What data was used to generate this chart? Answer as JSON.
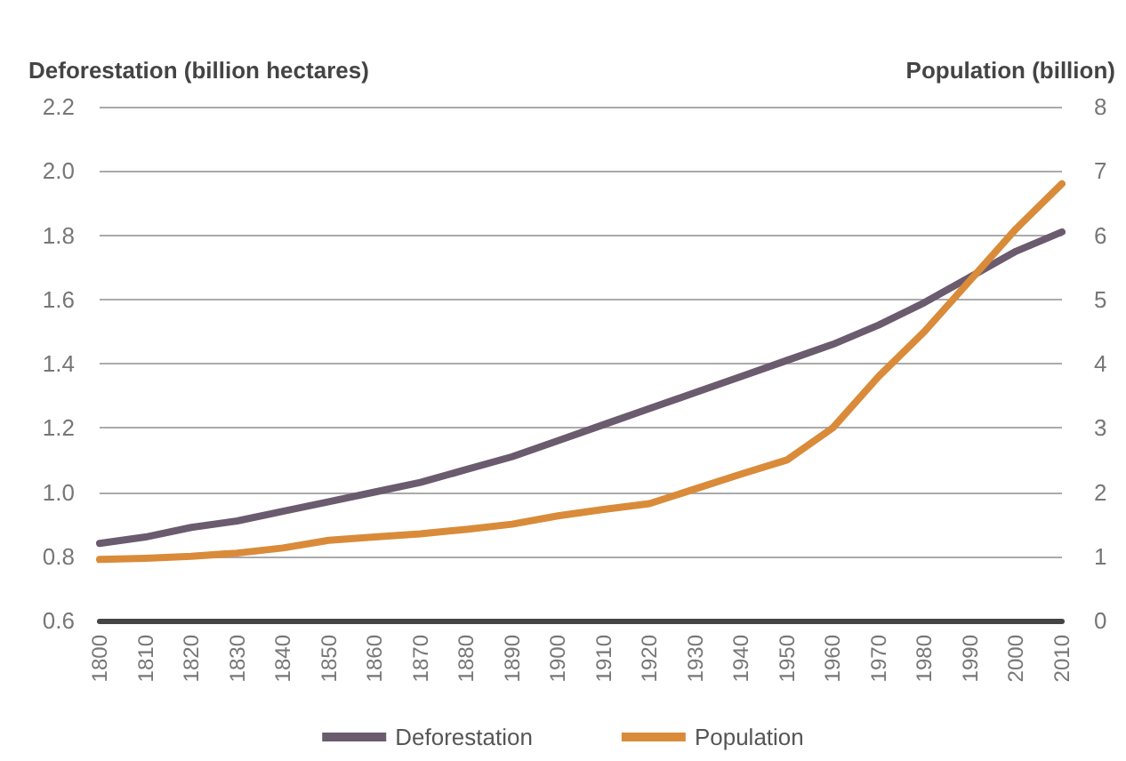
{
  "chart_data": {
    "type": "line",
    "categories": [
      "1800",
      "1810",
      "1820",
      "1830",
      "1840",
      "1850",
      "1860",
      "1870",
      "1880",
      "1890",
      "1900",
      "1910",
      "1920",
      "1930",
      "1940",
      "1950",
      "1960",
      "1970",
      "1980",
      "1990",
      "2000",
      "2010"
    ],
    "series": [
      {
        "name": "Deforestation",
        "color": "#6b5b6e",
        "values": [
          0.84,
          0.86,
          0.89,
          0.91,
          0.94,
          0.97,
          1.0,
          1.03,
          1.07,
          1.11,
          1.16,
          1.21,
          1.26,
          1.31,
          1.36,
          1.41,
          1.46,
          1.52,
          1.59,
          1.67,
          1.75,
          1.81
        ]
      },
      {
        "name": "Population",
        "color": "#d98b3a",
        "axis": "y2",
        "values": [
          0.95,
          0.97,
          1.0,
          1.05,
          1.13,
          1.25,
          1.3,
          1.35,
          1.42,
          1.5,
          1.63,
          1.73,
          1.82,
          2.05,
          2.28,
          2.5,
          3.0,
          3.8,
          4.5,
          5.3,
          6.1,
          6.8
        ]
      }
    ],
    "ylabel": "Deforestation (billion hectares)",
    "y2label": "Population (billion)",
    "ylim": [
      0.6,
      2.2
    ],
    "yticks": [
      {
        "value": 0.6,
        "label": "0.6"
      },
      {
        "value": 0.8,
        "label": "0.8"
      },
      {
        "value": 1,
        "label": "1.0"
      },
      {
        "value": 1.2,
        "label": "1.2"
      },
      {
        "value": 1.4,
        "label": "1.4"
      },
      {
        "value": 1.6,
        "label": "1.6"
      },
      {
        "value": 1.8,
        "label": "1.8"
      },
      {
        "value": 2,
        "label": "2.0"
      },
      {
        "value": 2.2,
        "label": "2.2"
      }
    ],
    "y2lim": [
      0,
      8
    ],
    "y2ticks": [
      0,
      1,
      2,
      3,
      4,
      5,
      6,
      7,
      8
    ],
    "grid": "y",
    "legend": "bottom",
    "marker": "none",
    "line_style": "solid"
  }
}
